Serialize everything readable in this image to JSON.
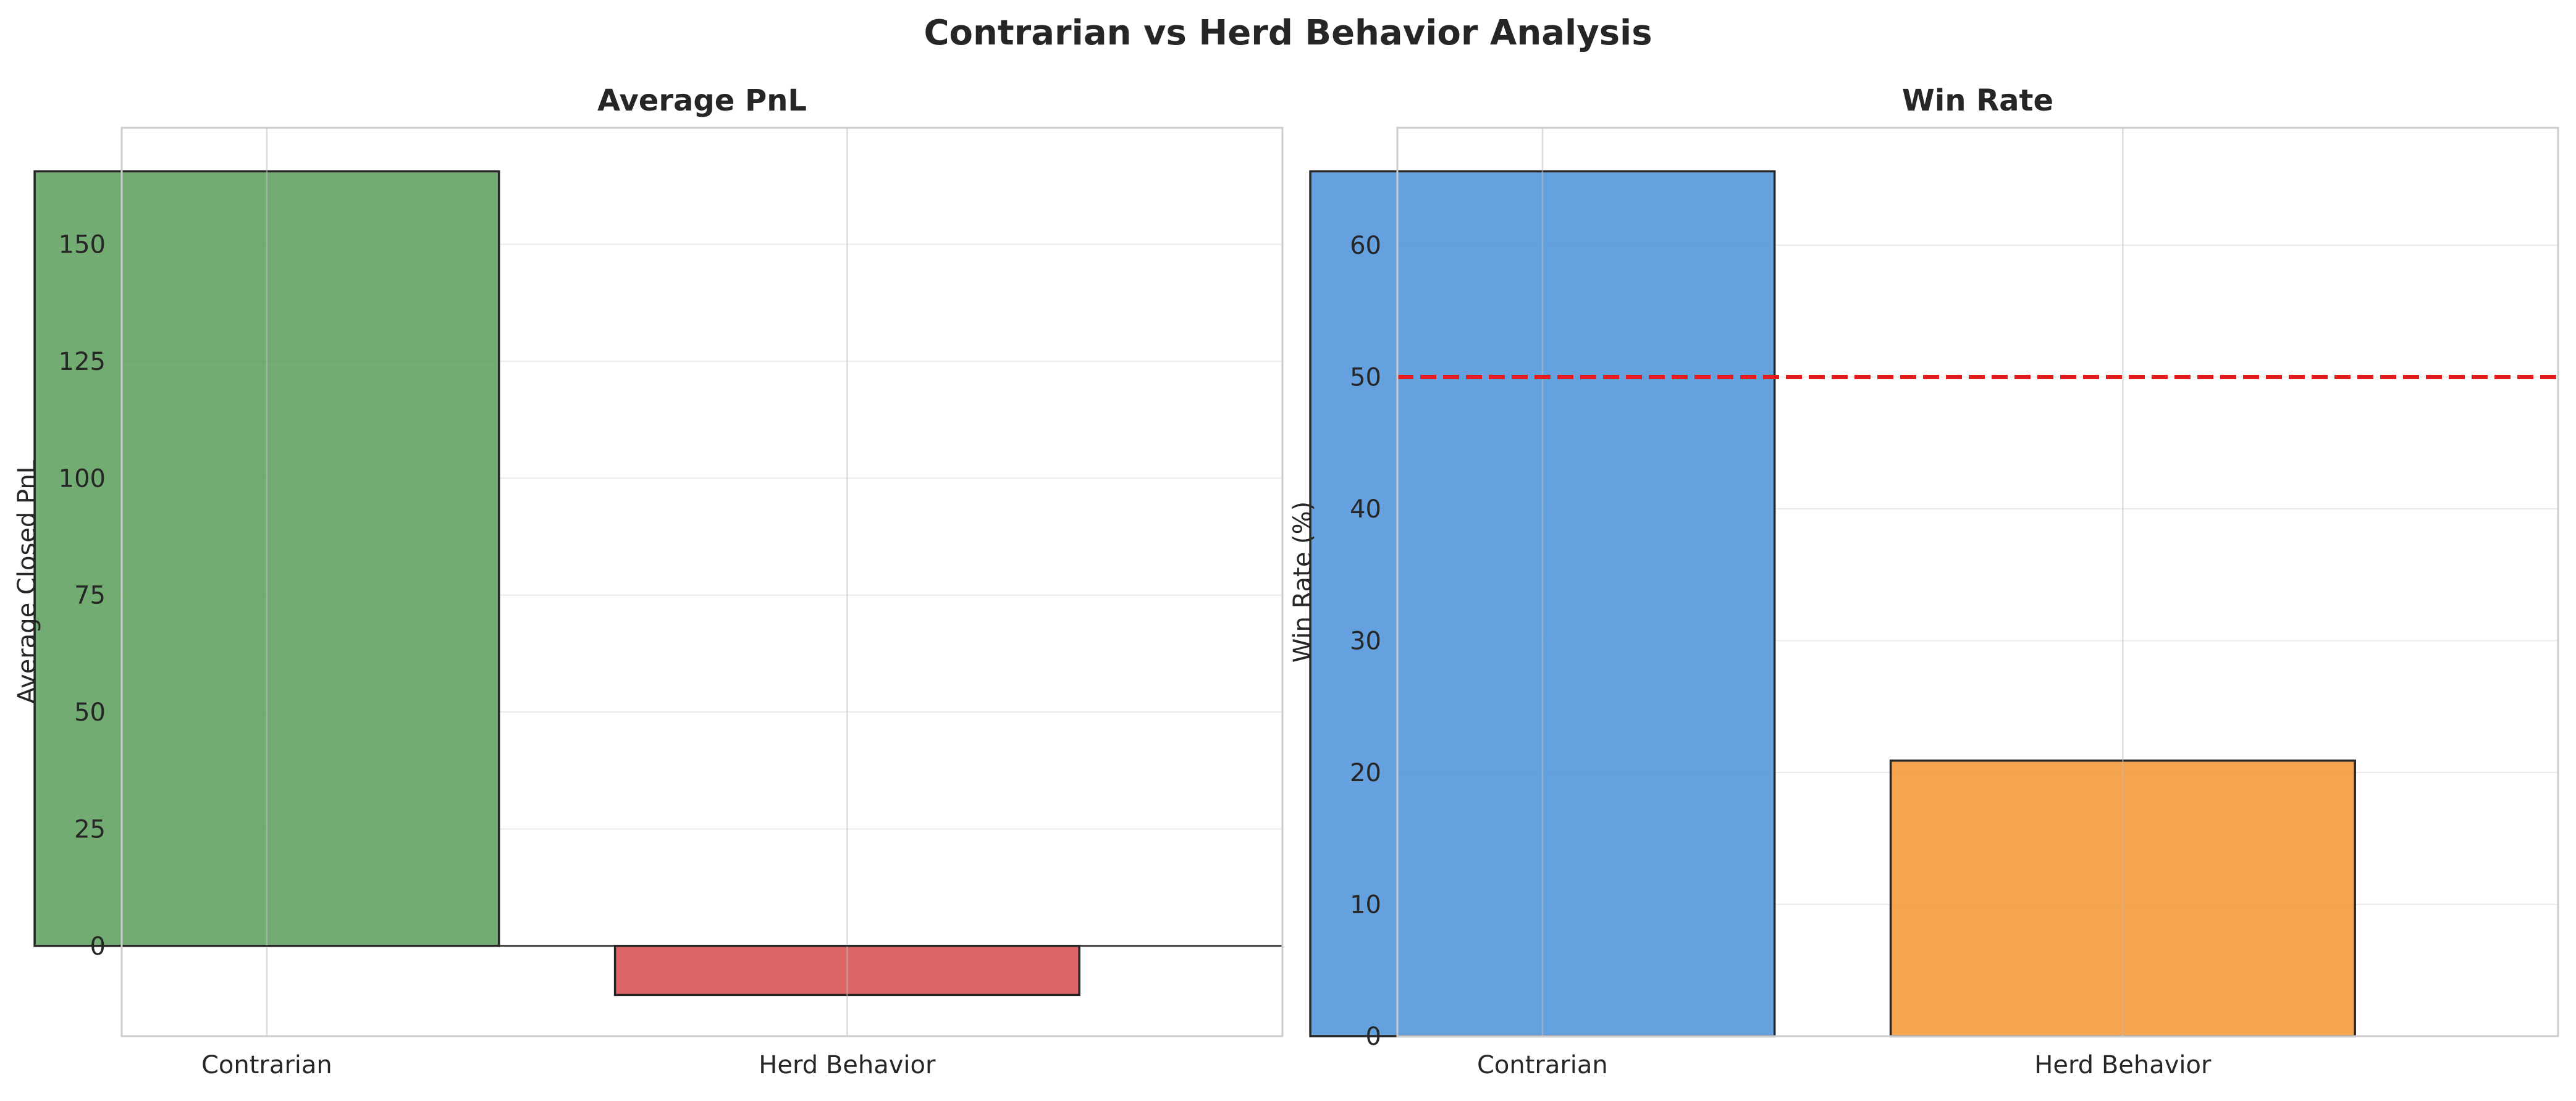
{
  "figure": {
    "title": "Contrarian vs Herd Behavior Analysis"
  },
  "chart_data": [
    {
      "type": "bar",
      "title": "Average PnL",
      "xlabel": "",
      "ylabel": "Average Closed PnL",
      "categories": [
        "Contrarian",
        "Herd Behavior"
      ],
      "values": [
        165.6,
        -10.5
      ],
      "colors": [
        "#5a9e5a",
        "#d94b4b"
      ],
      "ylim": [
        -19.3,
        174.9
      ],
      "yticks": [
        0,
        25,
        50,
        75,
        100,
        125,
        150
      ],
      "ytick_labels": [
        "0",
        "25",
        "50",
        "75",
        "100",
        "125",
        "150"
      ],
      "grid": true,
      "zero_line": true
    },
    {
      "type": "bar",
      "title": "Win Rate",
      "xlabel": "",
      "ylabel": "Win Rate (%)",
      "categories": [
        "Contrarian",
        "Herd Behavior"
      ],
      "values": [
        65.6,
        20.9
      ],
      "colors": [
        "#4a90d9",
        "#f39530"
      ],
      "ylim": [
        0,
        68.9
      ],
      "yticks": [
        0,
        10,
        20,
        30,
        40,
        50,
        60
      ],
      "ytick_labels": [
        "0",
        "10",
        "20",
        "30",
        "40",
        "50",
        "60"
      ],
      "grid": true,
      "reference_line": {
        "value": 50,
        "color": "#e41a1c",
        "style": "dashed"
      }
    }
  ]
}
